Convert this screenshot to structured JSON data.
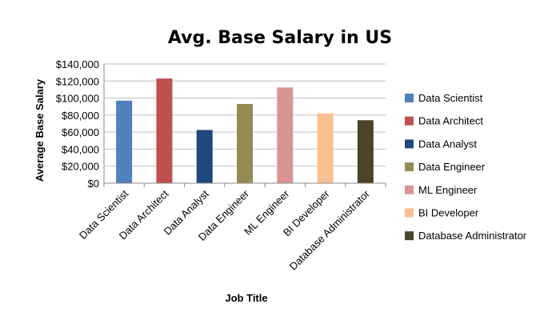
{
  "chart_data": {
    "type": "bar",
    "title": "Avg. Base Salary in US",
    "xlabel": "Job Title",
    "ylabel": "Average Base Salary",
    "ylim": [
      0,
      140000
    ],
    "yticks": [
      0,
      20000,
      40000,
      60000,
      80000,
      100000,
      120000,
      140000
    ],
    "ytick_labels": [
      "$0",
      "$20,000",
      "$40,000",
      "$60,000",
      "$80,000",
      "$100,000",
      "$120,000",
      "$140,000"
    ],
    "grid": true,
    "legend_position": "right",
    "categories": [
      "Data Scientist",
      "Data Architect",
      "Data Analyst",
      "Data Engineer",
      "ML Engineer",
      "BI Developer",
      "Database Administrator"
    ],
    "values": [
      97000,
      123000,
      62500,
      93000,
      112500,
      82000,
      74000
    ],
    "colors": [
      "#4F81BD",
      "#C0504D",
      "#1F497D",
      "#948A54",
      "#D99594",
      "#FAC090",
      "#4A452A"
    ]
  }
}
